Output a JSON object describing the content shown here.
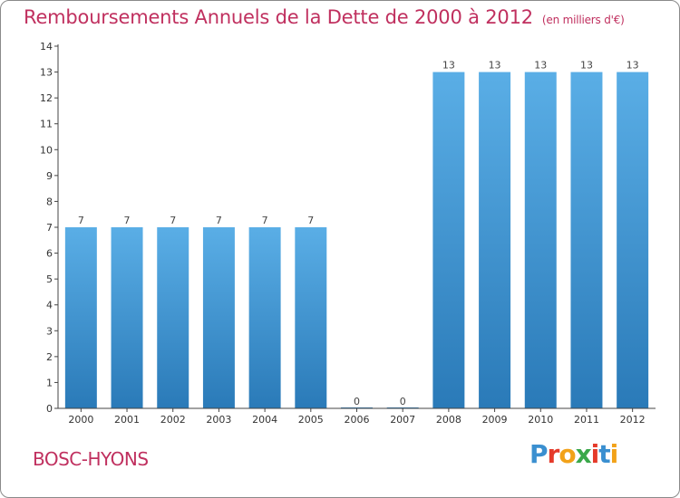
{
  "title": "Remboursements Annuels de la Dette de 2000 à 2012",
  "unit": "(en milliers d'€)",
  "commune": "BOSC-HYONS",
  "logo": {
    "letters": [
      "P",
      "r",
      "o",
      "x",
      "i",
      "t",
      "i"
    ],
    "colors": [
      "#3a8fd0",
      "#e53a2a",
      "#f2a219",
      "#3aa84a",
      "#e53a2a",
      "#3a8fd0",
      "#f2a219"
    ]
  },
  "colors": {
    "bar_light": "#5aaee6",
    "bar_dark": "#2a7ab8",
    "title": "#c0305f",
    "axis": "#444444"
  },
  "chart_data": {
    "type": "bar",
    "title": "Remboursements Annuels de la Dette de 2000 à 2012",
    "xlabel": "",
    "ylabel": "",
    "categories": [
      "2000",
      "2001",
      "2002",
      "2003",
      "2004",
      "2005",
      "2006",
      "2007",
      "2008",
      "2009",
      "2010",
      "2011",
      "2012"
    ],
    "values": [
      7,
      7,
      7,
      7,
      7,
      7,
      0,
      0,
      13,
      13,
      13,
      13,
      13
    ],
    "data_labels": [
      "7",
      "7",
      "7",
      "7",
      "7",
      "7",
      "0",
      "0",
      "13",
      "13",
      "13",
      "13",
      "13"
    ],
    "ylim": [
      0,
      14
    ],
    "yticks": [
      0,
      1,
      2,
      3,
      4,
      5,
      6,
      7,
      8,
      9,
      10,
      11,
      12,
      13,
      14
    ],
    "grid": false
  }
}
